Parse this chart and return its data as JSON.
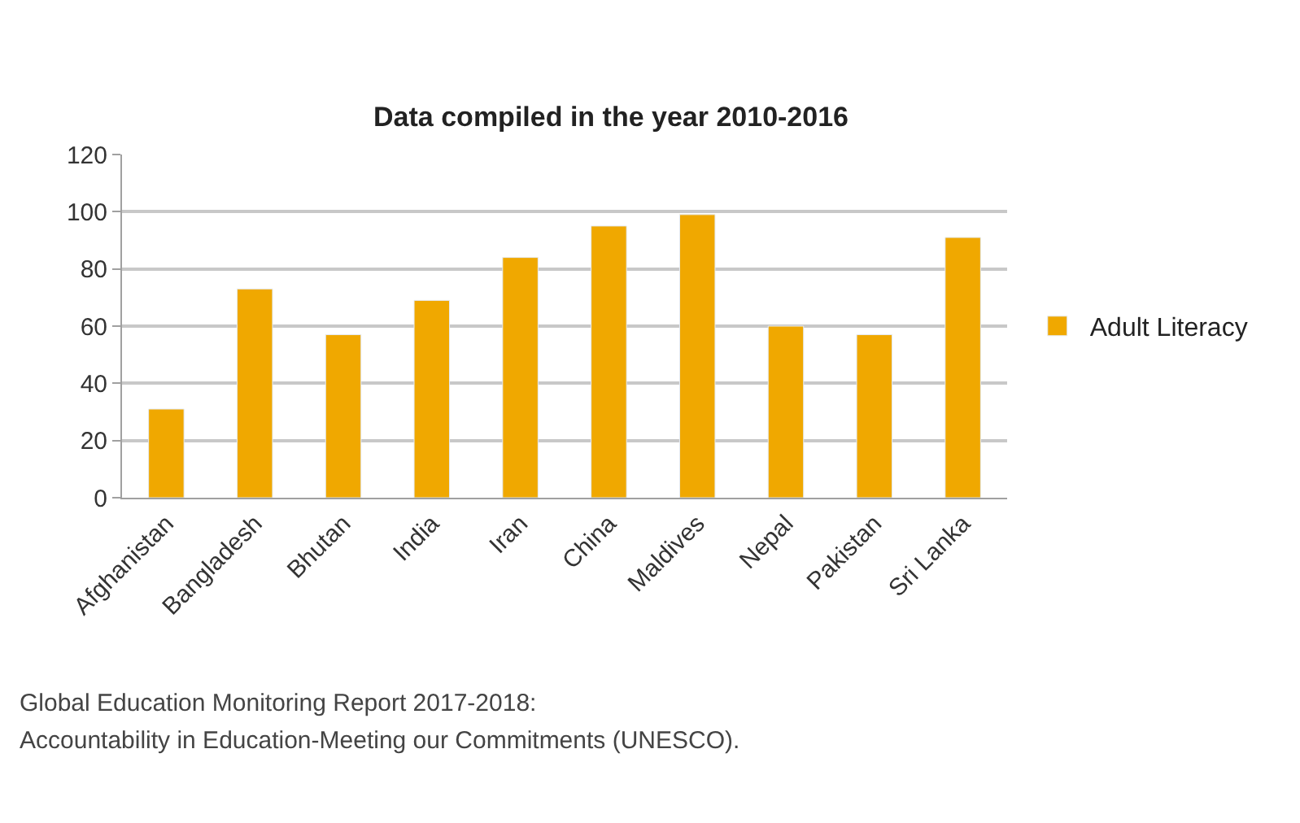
{
  "chart_data": {
    "type": "bar",
    "title": "Data compiled in the year 2010-2016",
    "categories": [
      "Afghanistan",
      "Bangladesh",
      "Bhutan",
      "India",
      "Iran",
      "China",
      "Maldives",
      "Nepal",
      "Pakistan",
      "Sri Lanka"
    ],
    "series": [
      {
        "name": "Adult Literacy",
        "color": "#f0a800",
        "values": [
          31,
          73,
          57,
          69,
          84,
          95,
          99,
          60,
          57,
          91
        ]
      }
    ],
    "ylim": [
      0,
      120
    ],
    "yticks": [
      0,
      20,
      40,
      60,
      80,
      100,
      120
    ],
    "grid": "y",
    "legend": "right",
    "annotations": [
      "Global Education Monitoring Report 2017-2018:",
      "Accountability in Education-Meeting our Commitments (UNESCO)."
    ]
  }
}
